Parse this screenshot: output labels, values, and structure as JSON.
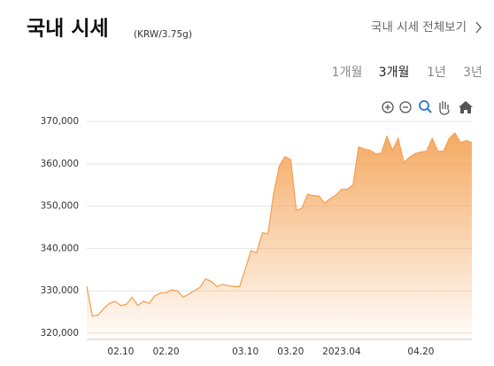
{
  "header": {
    "title": "국내 시세",
    "unit": "(KRW/3.75g)",
    "link": "국내 시세 전체보기"
  },
  "range_tabs": {
    "items": [
      "1개월",
      "3개월",
      "1년",
      "3년"
    ],
    "active": 1
  },
  "chart_data": {
    "type": "area",
    "categories": [
      null,
      null,
      null,
      null,
      null,
      null,
      "02.10",
      null,
      null,
      null,
      null,
      null,
      null,
      null,
      "02.20",
      null,
      null,
      null,
      null,
      null,
      null,
      null,
      null,
      null,
      null,
      null,
      null,
      null,
      "03.10",
      null,
      null,
      null,
      null,
      null,
      null,
      null,
      "03.20",
      null,
      null,
      null,
      null,
      null,
      null,
      null,
      null,
      "2023.04",
      null,
      null,
      null,
      null,
      null,
      null,
      null,
      null,
      null,
      null,
      null,
      null,
      null,
      "04.20",
      null,
      null,
      null,
      null,
      null,
      null,
      null,
      null,
      null
    ],
    "values": [
      331000,
      324000,
      324300,
      325800,
      327000,
      327500,
      326500,
      326800,
      328500,
      326500,
      327500,
      327000,
      328800,
      329500,
      329500,
      330200,
      330000,
      328500,
      329200,
      330000,
      330800,
      332800,
      332200,
      331000,
      331500,
      331200,
      331000,
      331000,
      335200,
      339500,
      339000,
      343700,
      343500,
      353000,
      359500,
      361700,
      361000,
      349000,
      349500,
      352800,
      352500,
      352400,
      350700,
      351800,
      352600,
      354000,
      354000,
      355000,
      364000,
      363500,
      363200,
      362400,
      362500,
      366500,
      363200,
      366000,
      360300,
      361600,
      362400,
      362800,
      363000,
      366000,
      363000,
      363000,
      366000,
      367300,
      365000,
      365500,
      365000
    ],
    "color": "#f2a356",
    "ylim": [
      318500,
      371500
    ],
    "yticks": [
      {
        "value": 320000,
        "label": "320,000"
      },
      {
        "value": 330000,
        "label": "330,000"
      },
      {
        "value": 340000,
        "label": "340,000"
      },
      {
        "value": 350000,
        "label": "350,000"
      },
      {
        "value": 360000,
        "label": "360,000"
      },
      {
        "value": 370000,
        "label": "370,000"
      }
    ],
    "grid": true
  }
}
